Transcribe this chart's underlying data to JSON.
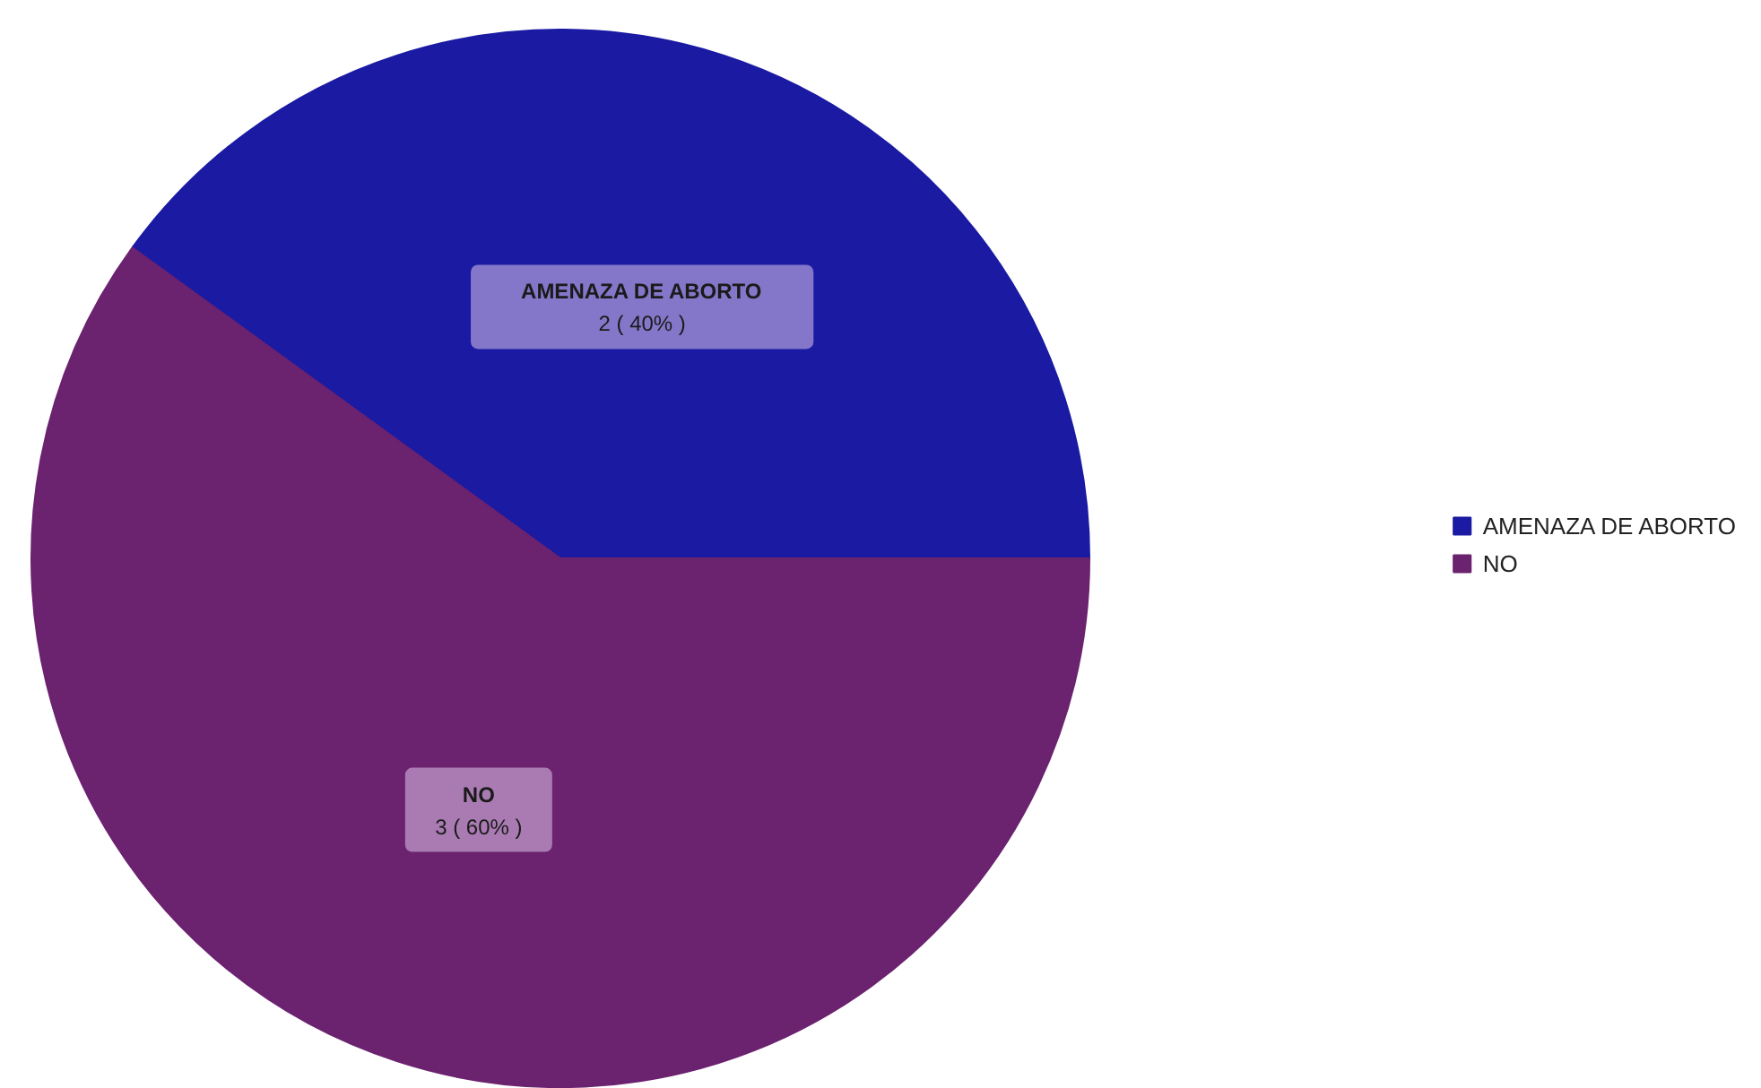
{
  "chart_data": {
    "type": "pie",
    "categories": [
      "AMENAZA DE ABORTO",
      "NO"
    ],
    "values": [
      2,
      3
    ],
    "colors": [
      "#1a1aa3",
      "#6b226f"
    ],
    "value_labels": [
      "2 ( 40% )",
      "3 ( 60% )"
    ],
    "legend": "right"
  }
}
